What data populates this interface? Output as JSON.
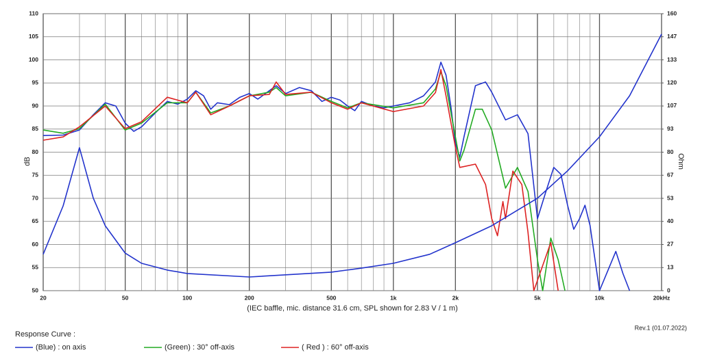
{
  "chart_data": {
    "type": "line",
    "log_x": true,
    "grid": true,
    "minor_grid": true,
    "xlim": [
      20,
      20000
    ],
    "xticks": [
      20,
      50,
      100,
      200,
      500,
      {
        "value": 1000,
        "label": "1k"
      },
      {
        "value": 2000,
        "label": "2k"
      },
      {
        "value": 5000,
        "label": "5k"
      },
      {
        "value": 10000,
        "label": "10k"
      },
      {
        "value": 20000,
        "label": "20kHz"
      }
    ],
    "ylim": [
      50,
      110
    ],
    "yticks": [
      50,
      55,
      60,
      65,
      70,
      75,
      80,
      85,
      90,
      95,
      100,
      105,
      110
    ],
    "ylabel": "dB",
    "y2lim": [
      0,
      160
    ],
    "y2ticks": [
      0,
      {
        "value": 13.33,
        "label": "13"
      },
      {
        "value": 26.67,
        "label": "27"
      },
      40,
      {
        "value": 53.33,
        "label": "53"
      },
      {
        "value": 66.67,
        "label": "67"
      },
      80,
      {
        "value": 93.33,
        "label": "93"
      },
      {
        "value": 106.67,
        "label": "107"
      },
      120,
      {
        "value": 133.33,
        "label": "133"
      },
      {
        "value": 146.67,
        "label": "147"
      },
      160
    ],
    "y2label": "Ohm",
    "caption": "(IEC baffle, mic. distance 31.6 cm, SPL shown for 2.83 V / 1 m)",
    "revision": "Rev.1 (01.07.2022)",
    "legend_title": "Response Curve :",
    "series": [
      {
        "name": "(Blue) : on axis",
        "color": "#2233cc",
        "x": [
          20,
          25,
          30,
          35,
          40,
          45,
          50,
          55,
          60,
          70,
          80,
          90,
          100,
          110,
          120,
          130,
          140,
          160,
          180,
          200,
          220,
          250,
          270,
          300,
          350,
          400,
          450,
          500,
          550,
          600,
          650,
          700,
          800,
          900,
          1000,
          1200,
          1400,
          1600,
          1700,
          1800,
          1900,
          2000,
          2100,
          2200,
          2500,
          2800,
          3000,
          3500,
          4000,
          4500,
          5000,
          5500,
          6000,
          6500,
          7000,
          7500,
          8000,
          8500,
          9000,
          10000,
          12000,
          13000,
          14000
        ],
        "values": [
          83.6,
          83.7,
          84.8,
          88.1,
          90.7,
          90,
          86.3,
          84.5,
          85.5,
          88.5,
          91,
          90.4,
          91.5,
          93.3,
          92.2,
          89.3,
          90.7,
          90.3,
          91.9,
          92.7,
          91.5,
          93.3,
          94.4,
          92.7,
          94,
          93.3,
          91,
          91.9,
          91.3,
          90,
          89,
          91,
          90,
          89.6,
          90,
          90.7,
          92.2,
          95.2,
          99.5,
          96.7,
          90,
          81.9,
          78.9,
          83.3,
          94.4,
          95.2,
          93,
          87,
          88.1,
          84,
          65.6,
          71.5,
          76.7,
          75.2,
          68.5,
          63.3,
          65.6,
          68.5,
          64.1,
          50,
          58.5,
          53.7,
          50
        ]
      },
      {
        "name": "(Green) : 30° off-axis",
        "color": "#22aa22",
        "x": [
          20,
          25,
          30,
          40,
          50,
          60,
          80,
          100,
          110,
          130,
          160,
          200,
          250,
          270,
          300,
          400,
          500,
          600,
          700,
          1000,
          1400,
          1600,
          1700,
          1800,
          2000,
          2100,
          2200,
          2500,
          2700,
          3000,
          3500,
          4000,
          4500,
          5000,
          5300,
          5800,
          6300,
          6800
        ],
        "values": [
          84.8,
          84.1,
          85.1,
          90.4,
          84.8,
          86.3,
          90.7,
          90.7,
          93,
          88.5,
          90,
          92.2,
          93,
          94,
          92.2,
          93,
          91,
          89.6,
          90.7,
          89.6,
          90.7,
          93.7,
          97.4,
          94.4,
          83.3,
          78.1,
          80.4,
          89.3,
          89.3,
          84.8,
          72.2,
          76.7,
          71.5,
          56.7,
          50,
          61.4,
          56.7,
          50
        ]
      },
      {
        "name": "( Red ) : 60° off-axis",
        "color": "#dd2222",
        "x": [
          20,
          25,
          30,
          40,
          50,
          60,
          80,
          100,
          110,
          130,
          160,
          200,
          250,
          270,
          300,
          400,
          500,
          600,
          700,
          1000,
          1400,
          1600,
          1700,
          1800,
          2000,
          2100,
          2500,
          2800,
          3000,
          3200,
          3400,
          3500,
          3800,
          4200,
          4500,
          4800,
          5800,
          6300
        ],
        "values": [
          82.6,
          83.3,
          85.5,
          90,
          85.1,
          86.6,
          91.9,
          90.7,
          93,
          88.1,
          90,
          92.2,
          92.5,
          95.2,
          92.5,
          93,
          90.7,
          89.3,
          90.7,
          88.8,
          90,
          92.9,
          97.9,
          92.2,
          81.1,
          76.7,
          77.4,
          73,
          65.6,
          61.9,
          69.3,
          65.6,
          75.9,
          73,
          62.6,
          50,
          60.4,
          50
        ]
      },
      {
        "axis": "y2",
        "color": "#2233cc",
        "x": [
          20,
          25,
          30,
          35,
          40,
          50,
          60,
          80,
          100,
          200,
          500,
          700,
          1000,
          1500,
          2000,
          3000,
          5000,
          7000,
          10000,
          14000,
          20000
        ],
        "values": [
          21,
          49,
          82.6,
          53.4,
          37.5,
          21.7,
          15.8,
          11.9,
          9.9,
          7.9,
          10.7,
          13,
          15.8,
          21,
          27.7,
          37.5,
          53.4,
          69.2,
          88.9,
          112.6,
          148.2
        ]
      }
    ]
  }
}
